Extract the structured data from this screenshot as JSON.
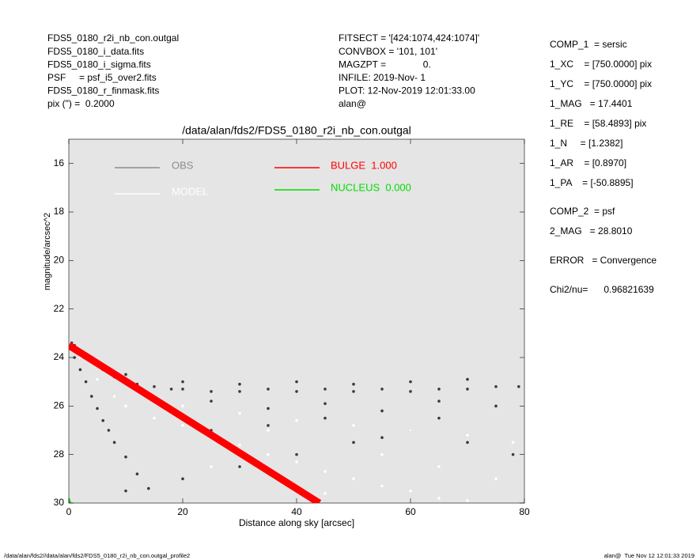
{
  "header": {
    "left": [
      "FDS5_0180_r2i_nb_con.outgal",
      "FDS5_0180_i_data.fits",
      "FDS5_0180_i_sigma.fits",
      "PSF     = psf_i5_over2.fits",
      "FDS5_0180_r_finmask.fits",
      "pix (\") =  0.2000"
    ],
    "middle": [
      "FITSECT = '[424:1074,424:1074]'",
      "CONVBOX = '101, 101'",
      "MAGZPT =              0.",
      "INFILE: 2019-Nov- 1",
      "PLOT: 12-Nov-2019 12:01:33.00",
      "alan@"
    ]
  },
  "panel": [
    "COMP_1  = sersic",
    "1_XC    = [750.0000] pix",
    "1_YC    = [750.0000] pix",
    "1_MAG   = 17.4401",
    "1_RE    = [58.4893] pix",
    "1_N     = [1.2382]",
    "1_AR    = [0.8970]",
    "1_PA    = [-50.8895]",
    "COMP_2  = psf",
    "2_MAG   = 28.8010",
    "ERROR   = Convergence",
    "Chi2/nu=      0.96821639"
  ],
  "footer": {
    "left": "/data/alan/fds2//data/alan/fds2/FDS5_0180_r2i_nb_con.outgal_profile2",
    "right": "alan@  Tue Nov 12 12:01:33 2019"
  },
  "chart_data": {
    "type": "scatter",
    "title": "/data/alan/fds2/FDS5_0180_r2i_nb_con.outgal",
    "x_label": "Distance along sky [arcsec]",
    "y_label": "magnitude/arcsec^2",
    "xlim": [
      0,
      80
    ],
    "ylim": [
      30,
      15
    ],
    "xticks": [
      0,
      20,
      40,
      60,
      80
    ],
    "yticks": [
      16,
      18,
      20,
      22,
      24,
      26,
      28,
      30
    ],
    "background": "#e5e5e5",
    "series": [
      {
        "name": "OBS",
        "kind": "points",
        "color": "#3a3a3a",
        "legend_color": "#8c8c8c",
        "x": [
          0.5,
          1,
          2,
          3,
          4,
          5,
          6,
          8,
          10,
          12,
          15,
          18,
          20,
          25,
          30,
          35,
          40,
          45,
          50,
          55,
          60,
          65,
          70,
          75,
          79,
          10,
          20,
          30,
          40,
          50,
          60,
          70,
          25,
          45,
          65,
          35,
          55,
          75,
          1,
          2,
          3,
          4,
          5,
          6,
          7,
          8,
          10,
          12,
          14,
          10,
          20,
          30,
          40,
          50,
          60,
          70,
          78,
          25,
          35,
          45,
          55,
          65
        ],
        "y": [
          23.4,
          23.5,
          23.7,
          23.9,
          24.1,
          24.3,
          24.5,
          24.8,
          25.0,
          25.1,
          25.2,
          25.3,
          25.3,
          25.4,
          25.4,
          25.3,
          25.4,
          25.3,
          25.4,
          25.3,
          25.4,
          25.3,
          25.3,
          25.2,
          25.2,
          24.7,
          25.0,
          25.1,
          25.0,
          25.1,
          25.0,
          24.9,
          25.8,
          25.9,
          25.8,
          26.1,
          26.2,
          26.0,
          24.0,
          24.5,
          25.0,
          25.6,
          26.1,
          26.6,
          27.0,
          27.5,
          28.1,
          28.8,
          29.4,
          29.5,
          29.0,
          28.5,
          28.0,
          27.5,
          27.0,
          27.5,
          28.0,
          27.0,
          26.8,
          26.5,
          27.3,
          26.5
        ]
      },
      {
        "name": "MODEL",
        "kind": "points",
        "color": "#ffffff",
        "legend_color": "#ffffff",
        "x": [
          2,
          5,
          8,
          10,
          15,
          20,
          25,
          30,
          35,
          40,
          45,
          50,
          55,
          60,
          65,
          70,
          20,
          30,
          40,
          50,
          60,
          70,
          78,
          25,
          45,
          75,
          15,
          35,
          55,
          65
        ],
        "y": [
          24.0,
          24.9,
          25.6,
          26.0,
          26.5,
          26.8,
          27.3,
          27.6,
          28.0,
          28.3,
          28.7,
          29.0,
          29.3,
          29.5,
          29.8,
          29.9,
          26.0,
          26.3,
          26.6,
          26.8,
          27.0,
          27.2,
          27.5,
          28.5,
          29.6,
          29.0,
          25.8,
          27.0,
          28.0,
          28.5
        ]
      },
      {
        "name": "BULGE  1.000",
        "kind": "band",
        "color": "#ff0000",
        "legend_color": "#ff0000",
        "x": [
          0,
          44
        ],
        "y": [
          23.5,
          30
        ]
      },
      {
        "name": "NUCLEUS  0.000",
        "kind": "band",
        "color": "#00dd00",
        "legend_color": "#00dd00",
        "x": [
          0,
          0.3
        ],
        "y": [
          29.8,
          30
        ]
      }
    ]
  }
}
